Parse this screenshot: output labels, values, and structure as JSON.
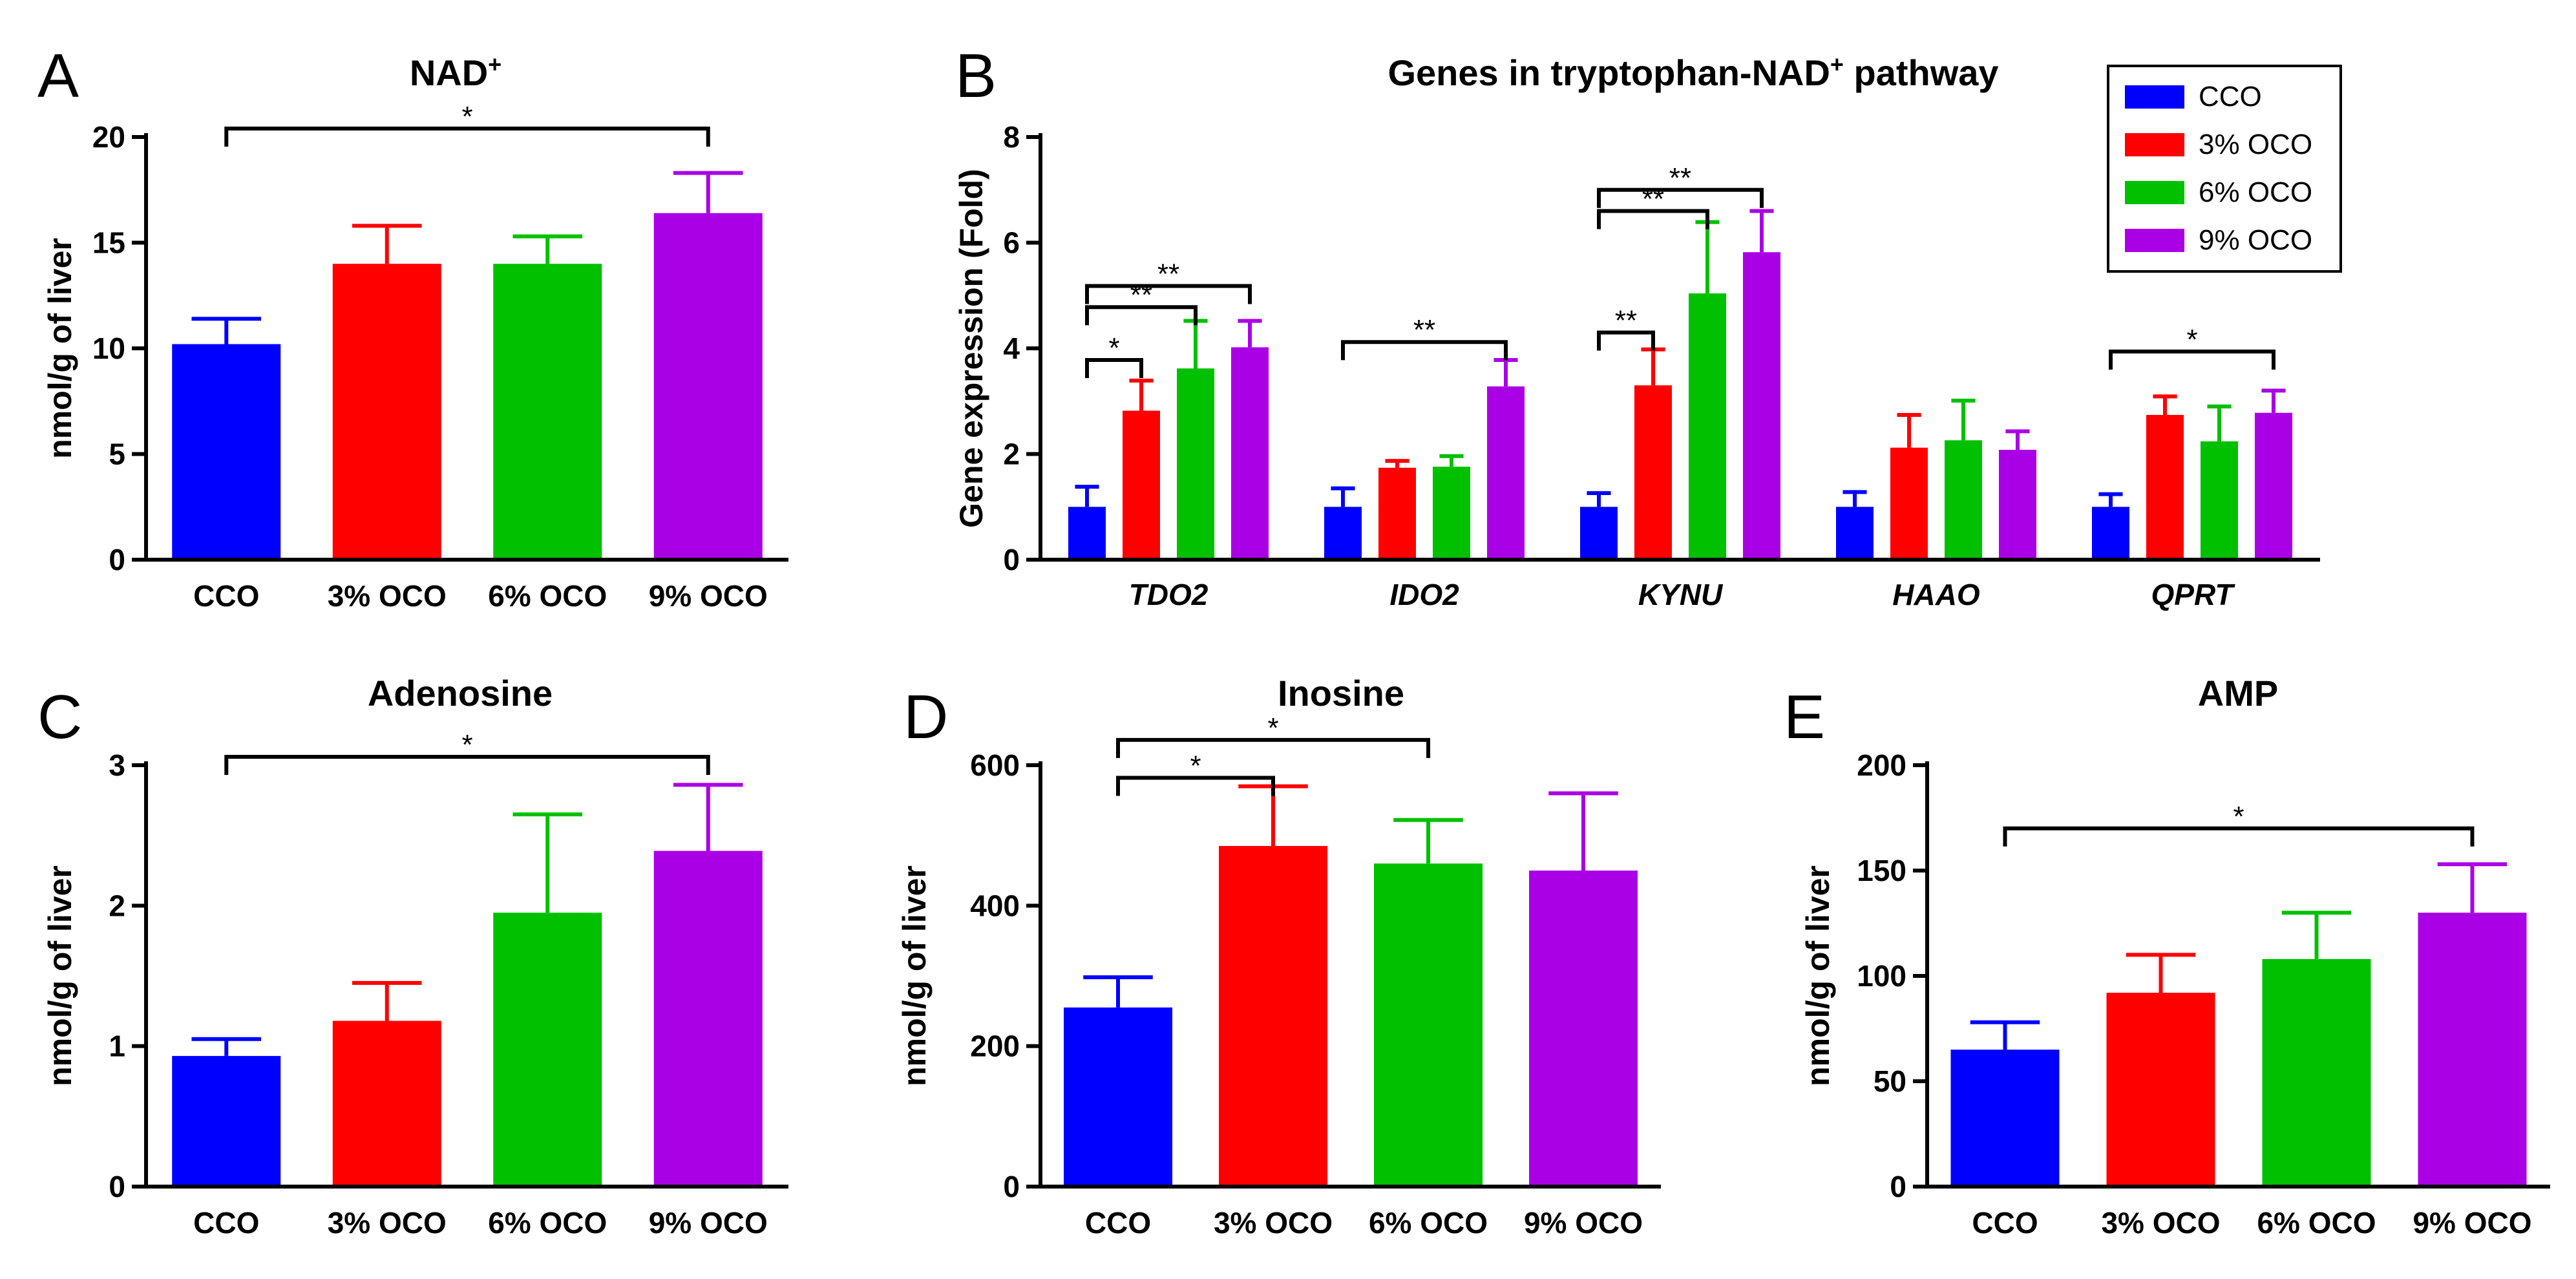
{
  "colors": {
    "CCO": "#0000ff",
    "3% OCO": "#ff0000",
    "6% OCO": "#00c000",
    "9% OCO": "#aa00e6",
    "axis": "#000000"
  },
  "chart_data": [
    {
      "id": "A",
      "panel_letter": "A",
      "type": "bar",
      "title": "NAD",
      "title_superscript": "+",
      "ylabel": "nmol/g of liver",
      "ylim": [
        0,
        20
      ],
      "yticks": [
        0,
        5,
        10,
        15,
        20
      ],
      "categories": [
        "CCO",
        "3% OCO",
        "6% OCO",
        "9% OCO"
      ],
      "values": [
        10.2,
        14.0,
        14.0,
        16.4
      ],
      "errors": [
        1.2,
        1.8,
        1.3,
        1.9
      ],
      "significance": [
        {
          "from": 0,
          "to": 3,
          "label": "*"
        }
      ]
    },
    {
      "id": "B",
      "panel_letter": "B",
      "type": "bar",
      "title": "Genes in tryptophan-NAD",
      "title_superscript": "+",
      "title_suffix": " pathway",
      "ylabel": "Gene expression (Fold)",
      "ylim": [
        0,
        8
      ],
      "yticks": [
        0,
        2,
        4,
        6,
        8
      ],
      "categories": [
        "TDO2",
        "IDO2",
        "KYNU",
        "HAAO",
        "QPRT"
      ],
      "legend": [
        "CCO",
        "3% OCO",
        "6% OCO",
        "9% OCO"
      ],
      "legend_position": "top-right",
      "series": [
        {
          "name": "CCO",
          "values": [
            1.0,
            1.0,
            1.0,
            1.0,
            1.0
          ],
          "errors": [
            0.38,
            0.35,
            0.26,
            0.28,
            0.24
          ]
        },
        {
          "name": "3% OCO",
          "values": [
            2.82,
            1.74,
            3.3,
            2.12,
            2.74
          ],
          "errors": [
            0.57,
            0.13,
            0.68,
            0.62,
            0.35
          ]
        },
        {
          "name": "6% OCO",
          "values": [
            3.62,
            1.76,
            5.04,
            2.26,
            2.24
          ],
          "errors": [
            0.9,
            0.2,
            1.35,
            0.75,
            0.66
          ]
        },
        {
          "name": "9% OCO",
          "values": [
            4.02,
            3.28,
            5.82,
            2.08,
            2.78
          ],
          "errors": [
            0.5,
            0.5,
            0.78,
            0.35,
            0.42
          ]
        }
      ],
      "significance": [
        {
          "group": 0,
          "from": 0,
          "to": 1,
          "label": "*",
          "level": 3.78
        },
        {
          "group": 0,
          "from": 0,
          "to": 2,
          "label": "**",
          "level": 4.78
        },
        {
          "group": 0,
          "from": 0,
          "to": 3,
          "label": "**",
          "level": 5.18
        },
        {
          "group": 1,
          "from": 0,
          "to": 3,
          "label": "**",
          "level": 4.12
        },
        {
          "group": 2,
          "from": 0,
          "to": 1,
          "label": "**",
          "level": 4.3
        },
        {
          "group": 2,
          "from": 0,
          "to": 2,
          "label": "**",
          "level": 6.6
        },
        {
          "group": 2,
          "from": 0,
          "to": 3,
          "label": "**",
          "level": 7.0
        },
        {
          "group": 4,
          "from": 0,
          "to": 3,
          "label": "*",
          "level": 3.94
        }
      ]
    },
    {
      "id": "C",
      "panel_letter": "C",
      "type": "bar",
      "title": "Adenosine",
      "ylabel": "nmol/g of liver",
      "ylim": [
        0,
        3
      ],
      "yticks": [
        0,
        1,
        2,
        3
      ],
      "categories": [
        "CCO",
        "3% OCO",
        "6% OCO",
        "9% OCO"
      ],
      "values": [
        0.93,
        1.18,
        1.95,
        2.39
      ],
      "errors": [
        0.12,
        0.27,
        0.7,
        0.47
      ],
      "significance": [
        {
          "from": 0,
          "to": 3,
          "label": "*"
        }
      ]
    },
    {
      "id": "D",
      "panel_letter": "D",
      "type": "bar",
      "title": "Inosine",
      "ylabel": "nmol/g of liver",
      "ylim": [
        0,
        600
      ],
      "yticks": [
        0,
        200,
        400,
        600
      ],
      "categories": [
        "CCO",
        "3% OCO",
        "6% OCO",
        "9% OCO"
      ],
      "values": [
        255,
        485,
        460,
        450
      ],
      "errors": [
        43,
        85,
        62,
        110
      ],
      "significance": [
        {
          "from": 0,
          "to": 1,
          "label": "*"
        },
        {
          "from": 0,
          "to": 2,
          "label": "*"
        }
      ]
    },
    {
      "id": "E",
      "panel_letter": "E",
      "type": "bar",
      "title": "AMP",
      "ylabel": "nmol/g of liver",
      "ylim": [
        0,
        200
      ],
      "yticks": [
        0,
        50,
        100,
        150,
        200
      ],
      "categories": [
        "CCO",
        "3% OCO",
        "6% OCO",
        "9% OCO"
      ],
      "values": [
        65,
        92,
        108,
        130
      ],
      "errors": [
        13,
        18,
        22,
        23
      ],
      "significance": [
        {
          "from": 0,
          "to": 3,
          "label": "*"
        }
      ]
    }
  ]
}
